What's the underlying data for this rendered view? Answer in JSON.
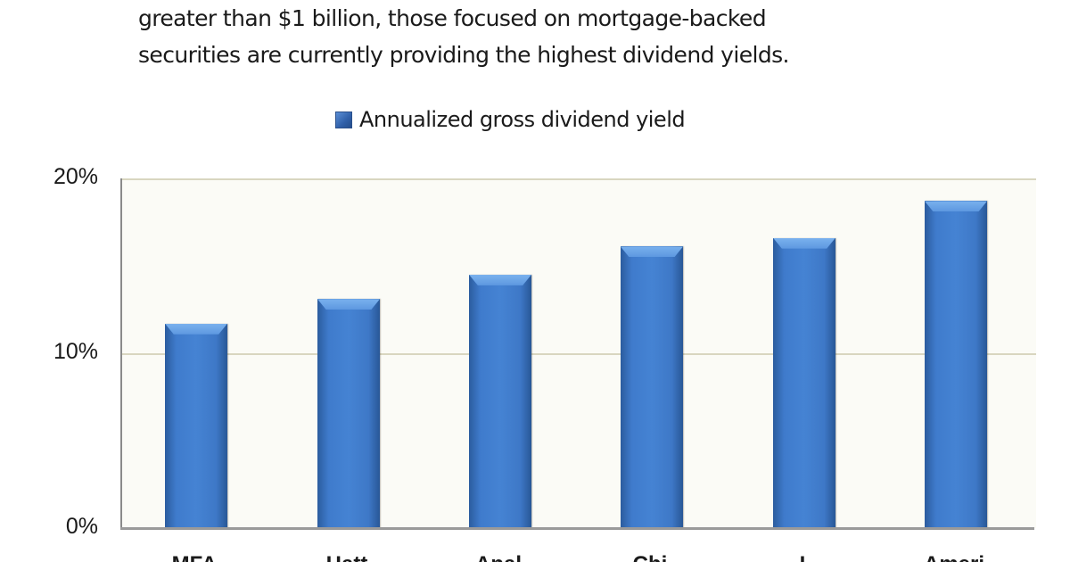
{
  "intro_text": {
    "line1": "greater than $1 billion, those focused on mortgage-backed",
    "line2": "securities are currently providing the highest dividend yields."
  },
  "chart_data": {
    "type": "bar",
    "title": "",
    "legend": [
      "Annualized gross dividend yield"
    ],
    "legend_position": "top",
    "categories": [
      "MFA...",
      "Hatt...",
      "Anal...",
      "Chi...",
      "I...",
      "Ameri..."
    ],
    "series": [
      {
        "name": "Annualized gross dividend yield",
        "values": [
          11.7,
          13.1,
          14.5,
          16.1,
          16.6,
          18.7
        ],
        "color": "#3f7bcc"
      }
    ],
    "xlabel": "",
    "ylabel": "",
    "ylim": [
      0,
      20
    ],
    "yticks": [
      "0%",
      "10%",
      "20%"
    ],
    "grid": true,
    "plot_background": "#fbfbf6",
    "note": "Category labels are clipped at the bottom edge of the image; only the tops of the glyphs are visible."
  },
  "axis": {
    "y_ticks": [
      {
        "label": "20%",
        "value": 20
      },
      {
        "label": "10%",
        "value": 10
      },
      {
        "label": "0%",
        "value": 0
      }
    ]
  },
  "xlabels_partial": [
    "MFA",
    "Hatt",
    "Anal",
    "Chi",
    "I",
    "Ameri"
  ]
}
